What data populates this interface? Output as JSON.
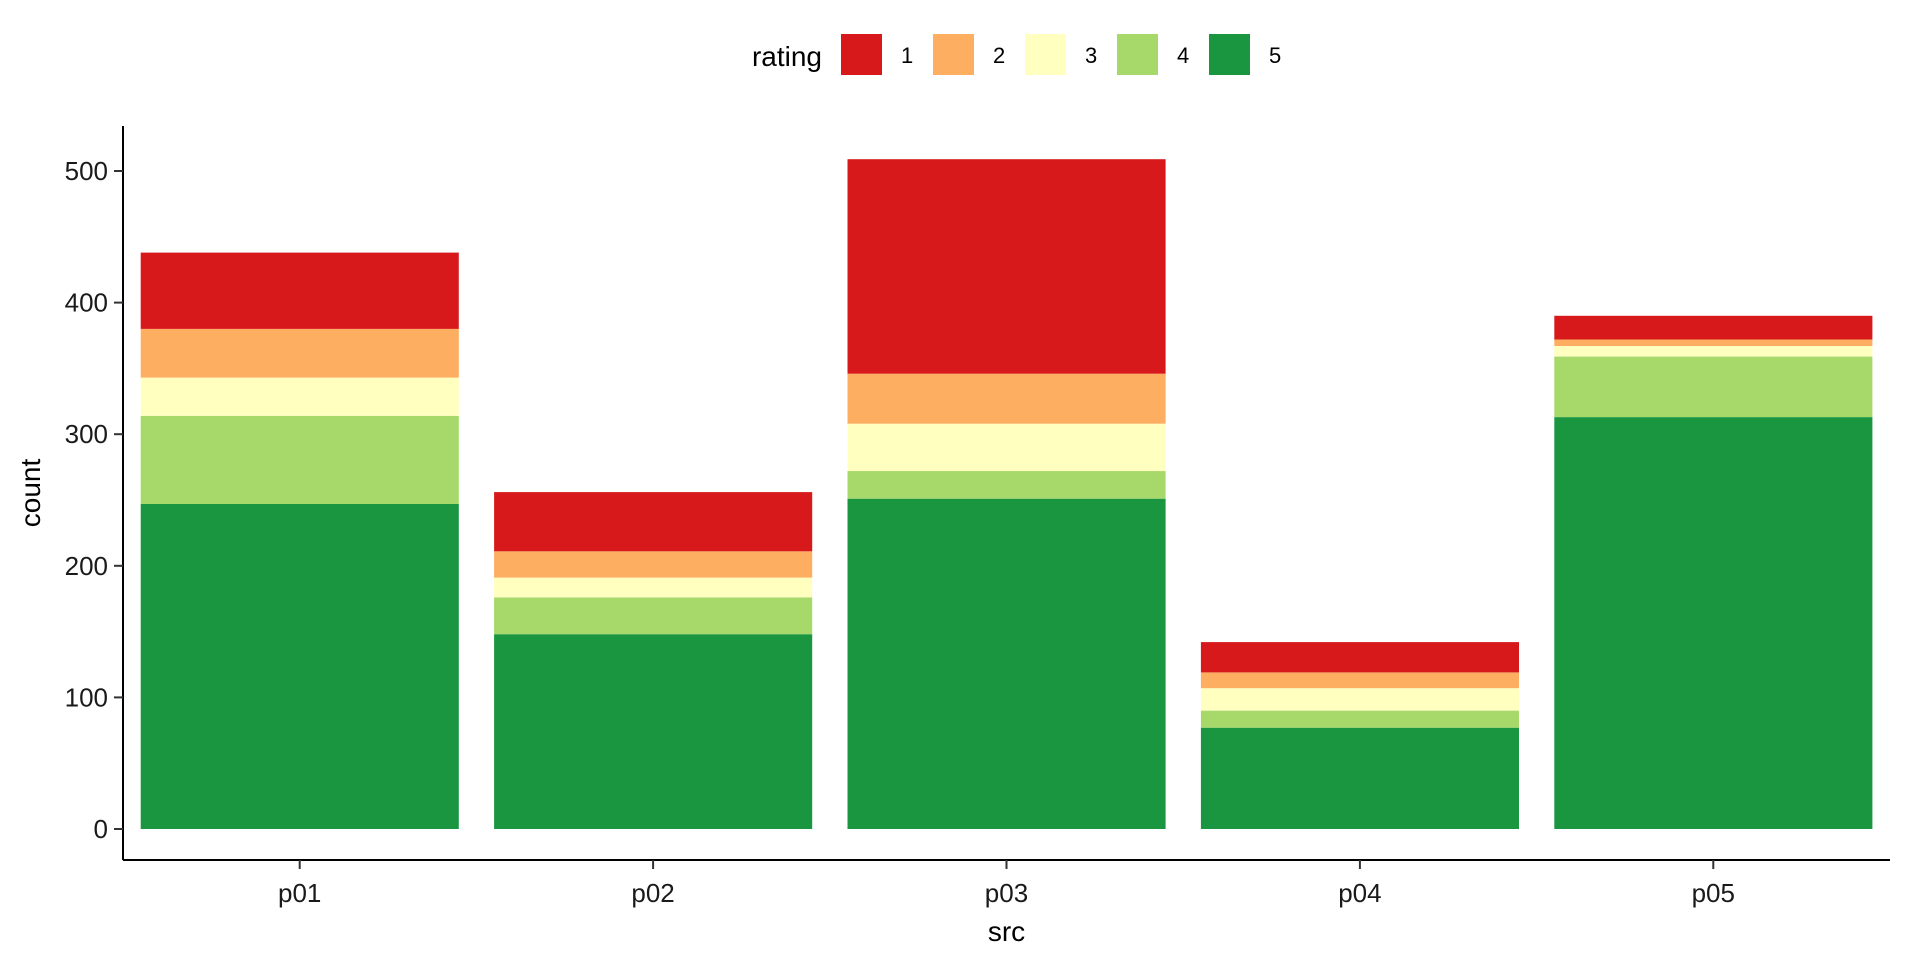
{
  "chart_data": {
    "type": "bar",
    "stacked": true,
    "categories": [
      "p01",
      "p02",
      "p03",
      "p04",
      "p05"
    ],
    "series": [
      {
        "name": "5",
        "color": "#1a9641",
        "values": [
          247,
          148,
          251,
          77,
          313
        ]
      },
      {
        "name": "4",
        "color": "#a6d96a",
        "values": [
          67,
          28,
          21,
          13,
          46
        ]
      },
      {
        "name": "3",
        "color": "#ffffc0",
        "values": [
          29,
          15,
          36,
          17,
          8
        ]
      },
      {
        "name": "2",
        "color": "#fdae61",
        "values": [
          37,
          20,
          38,
          12,
          5
        ]
      },
      {
        "name": "1",
        "color": "#d7191c",
        "values": [
          58,
          45,
          163,
          23,
          18
        ]
      }
    ],
    "xlabel": "src",
    "ylabel": "count",
    "ylim": [
      0,
      535
    ],
    "yticks": [
      0,
      100,
      200,
      300,
      400,
      500
    ],
    "legend": {
      "title": "rating",
      "position": "top",
      "order": [
        "1",
        "2",
        "3",
        "4",
        "5"
      ]
    },
    "grid": false
  }
}
